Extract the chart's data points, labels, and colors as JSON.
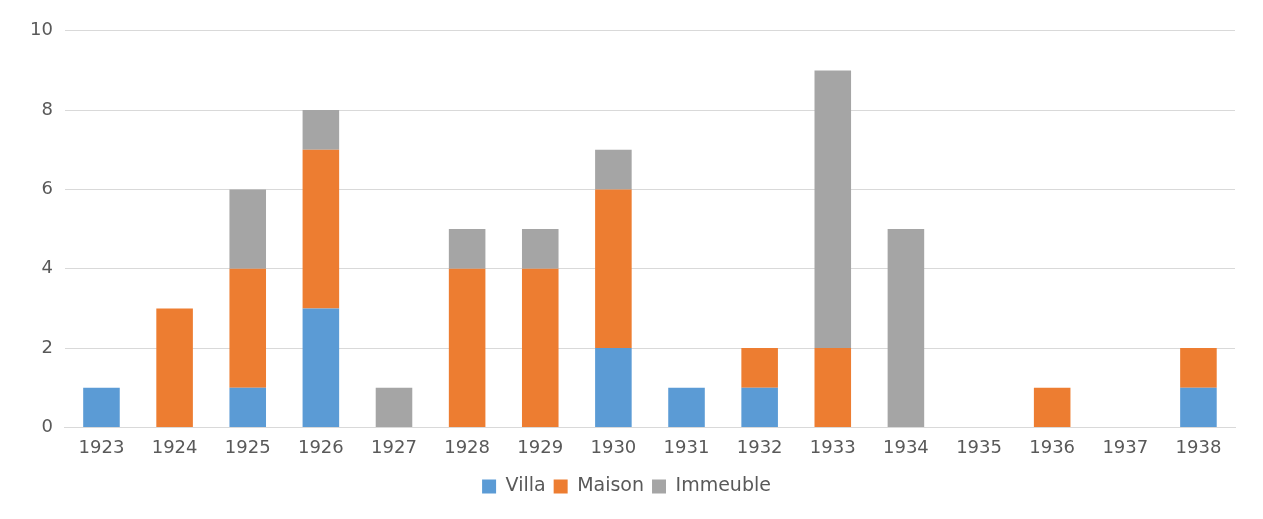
{
  "chart_data": {
    "type": "bar",
    "stacked": true,
    "categories": [
      "1923",
      "1924",
      "1925",
      "1926",
      "1927",
      "1928",
      "1929",
      "1930",
      "1931",
      "1932",
      "1933",
      "1934",
      "1935",
      "1936",
      "1937",
      "1938"
    ],
    "series": [
      {
        "name": "Villa",
        "color": "#5b9bd5",
        "values": [
          1,
          0,
          1,
          3,
          0,
          0,
          0,
          2,
          1,
          1,
          0,
          0,
          0,
          0,
          0,
          1
        ]
      },
      {
        "name": "Maison",
        "color": "#ed7d31",
        "values": [
          0,
          3,
          3,
          4,
          0,
          4,
          4,
          4,
          0,
          1,
          2,
          0,
          0,
          1,
          0,
          1
        ]
      },
      {
        "name": "Immeuble",
        "color": "#a5a5a5",
        "values": [
          0,
          0,
          2,
          1,
          1,
          1,
          1,
          1,
          0,
          0,
          7,
          5,
          0,
          0,
          0,
          0
        ]
      }
    ],
    "ylim": [
      0,
      10
    ],
    "yticks": [
      0,
      2,
      4,
      6,
      8,
      10
    ],
    "grid": "y",
    "legend": "bottom"
  }
}
